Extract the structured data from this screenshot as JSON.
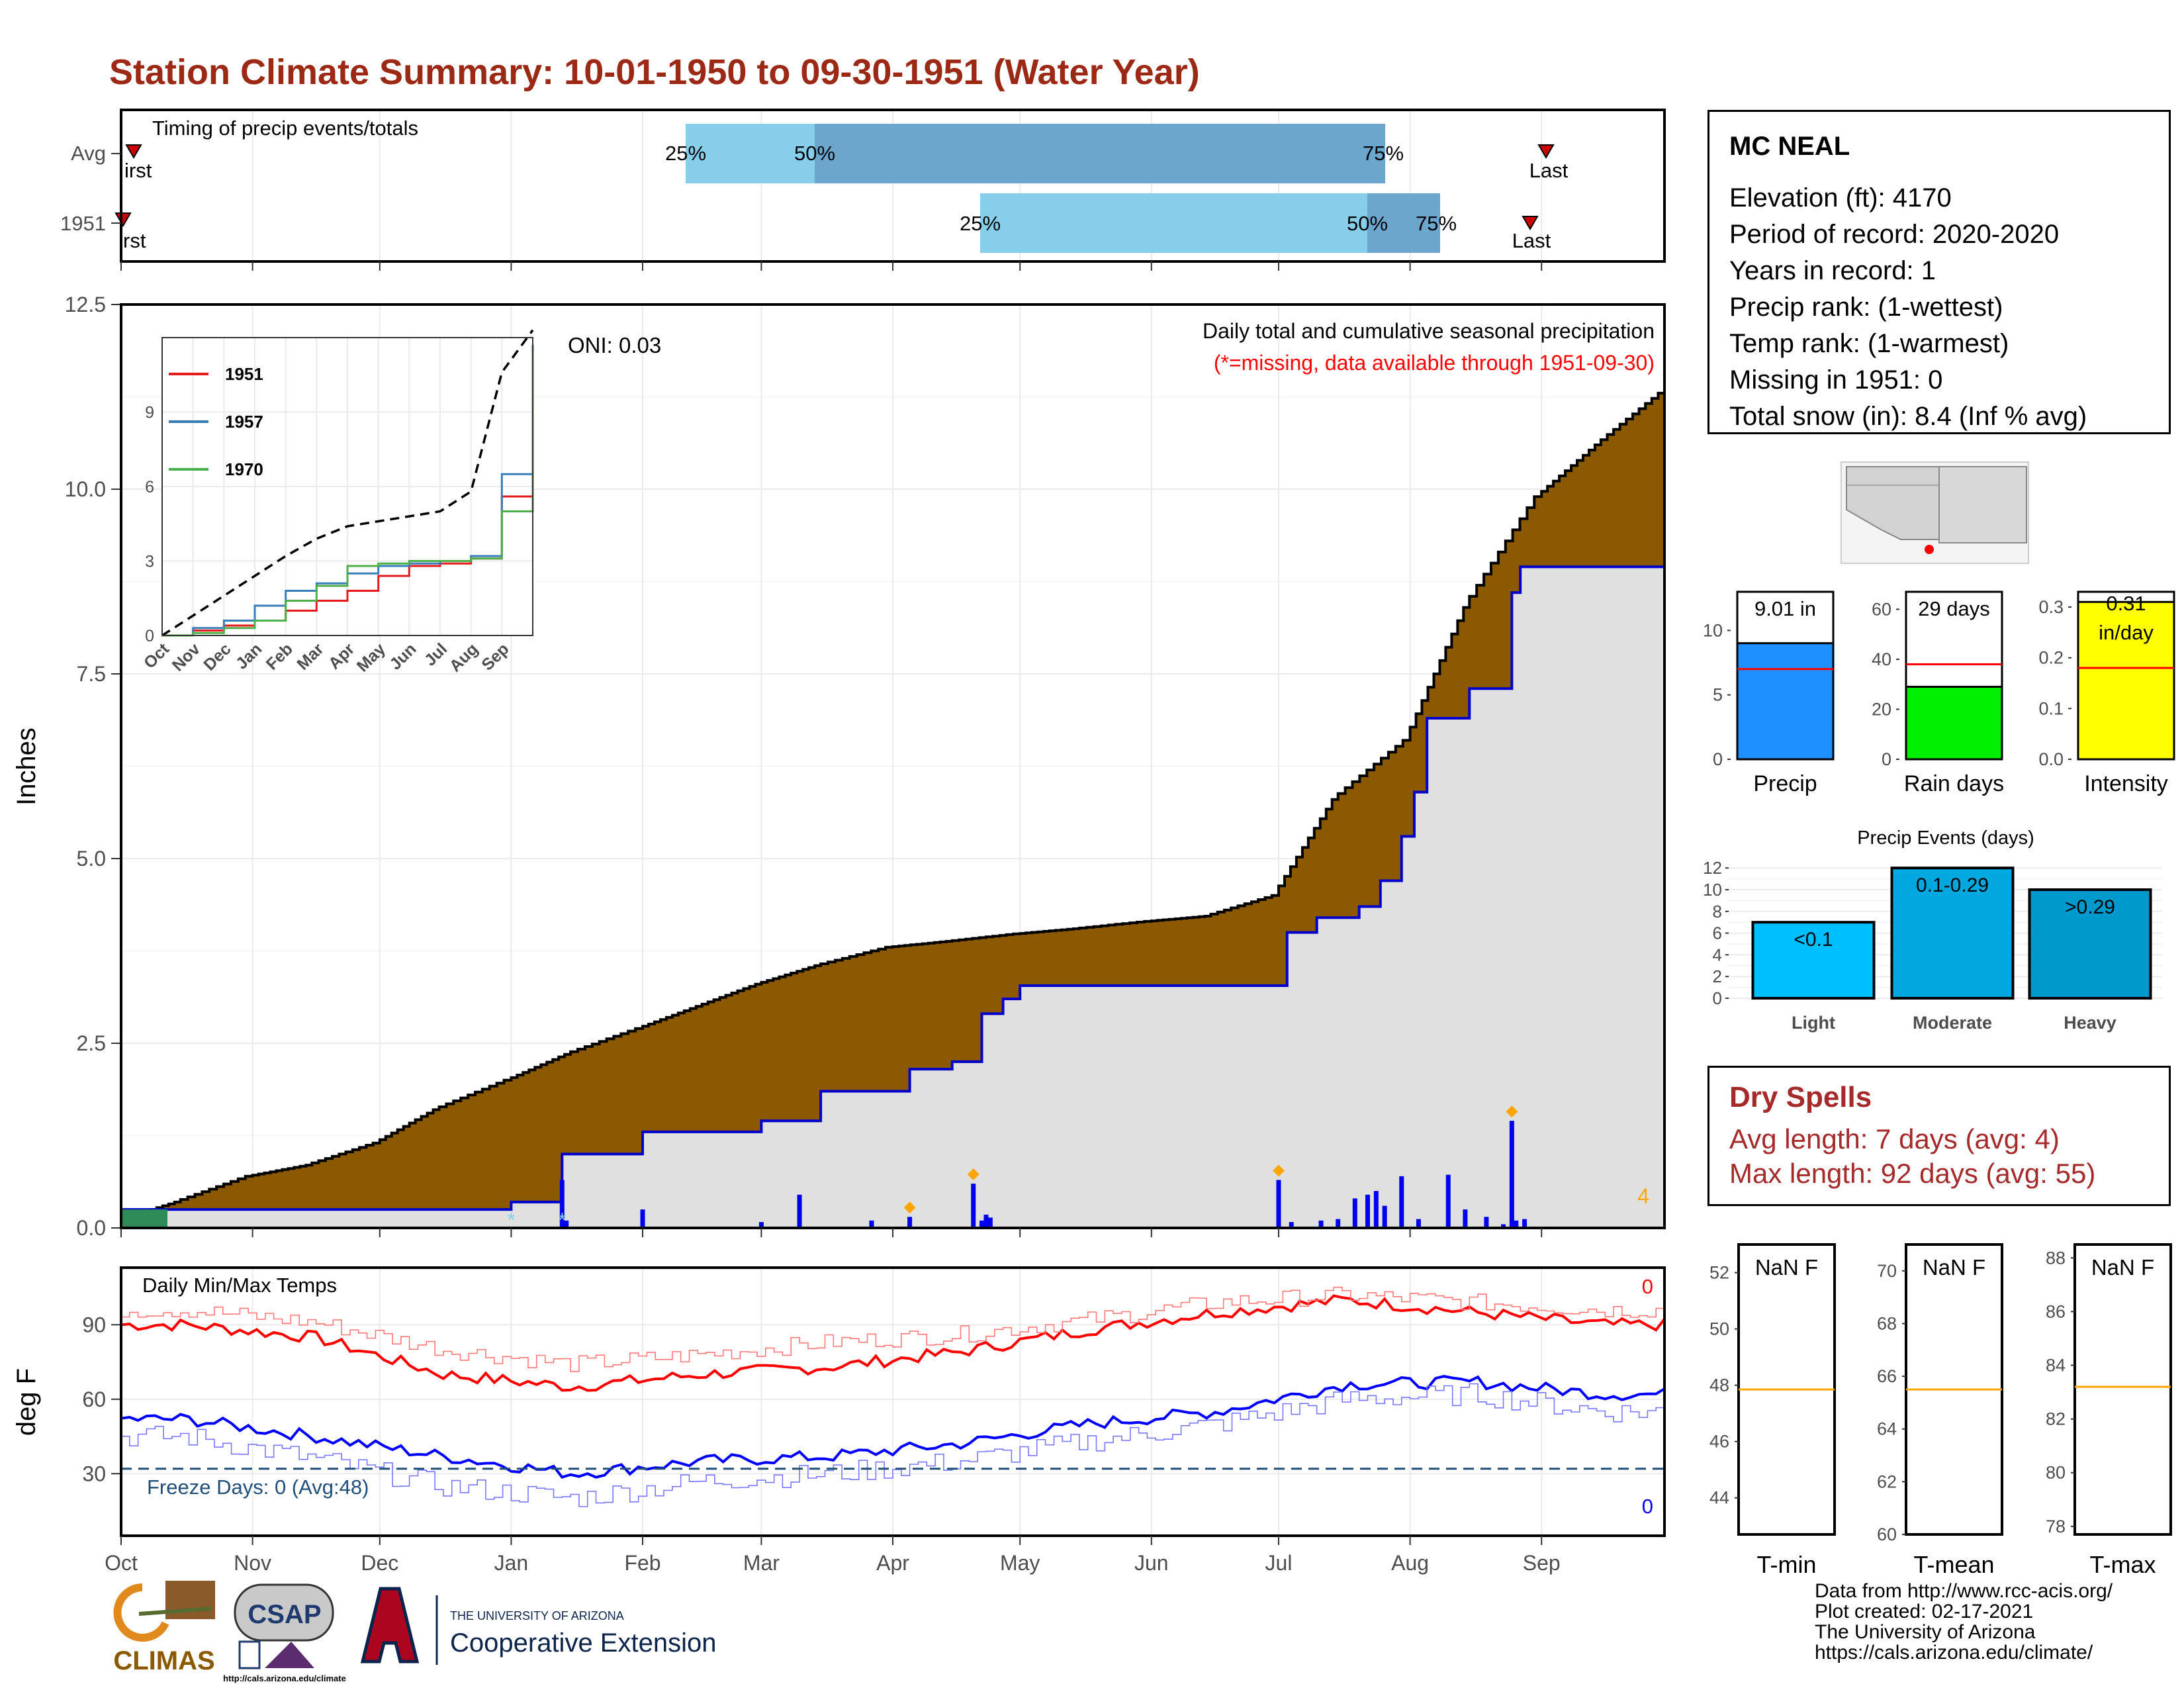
{
  "title": "Station Climate Summary: 10-01-1950 to 09-30-1951 (Water Year)",
  "timing": {
    "label": "Timing of precip events/totals",
    "rows": [
      "Avg",
      "1951"
    ],
    "avg_marks": {
      "first_label": "irst",
      "last_label": "Last",
      "p25": "25%",
      "p50": "50%",
      "p75": "75%"
    },
    "yr_marks": {
      "first_label": "rst",
      "last_label": "Last",
      "p25": "25%",
      "p50": "50%",
      "p75": "75%"
    },
    "colors": {
      "light": "#87CEEB",
      "dark": "#6CA6CD",
      "marker": "#CC0000"
    }
  },
  "main": {
    "ylabel": "Inches",
    "annotation": "Daily total and cumulative seasonal precipitation",
    "missing_note": "(*=missing, data available through 1951-09-30)",
    "oni": "ONI: 0.03",
    "corner_count": "4",
    "months": [
      "Oct",
      "Nov",
      "Dec",
      "Jan",
      "Feb",
      "Mar",
      "Apr",
      "May",
      "Jun",
      "Jul",
      "Aug",
      "Sep"
    ],
    "yticks": [
      "0.0",
      "2.5",
      "5.0",
      "7.5",
      "10.0",
      "12.5"
    ],
    "colors": {
      "avg_fill": "#8B5A00",
      "year_fill": "#E0E0E0",
      "year_line": "#0000CC",
      "bars": "#0000EE",
      "diamond": "#FFA500"
    }
  },
  "inset": {
    "legend": [
      "1951",
      "1957",
      "1970"
    ],
    "legend_colors": [
      "#E41A1C",
      "#377EB8",
      "#4DAF4A"
    ],
    "yticks": [
      "0",
      "3",
      "6",
      "9"
    ],
    "months": [
      "Oct",
      "Nov",
      "Dec",
      "Jan",
      "Feb",
      "Mar",
      "Apr",
      "May",
      "Jun",
      "Jul",
      "Aug",
      "Sep"
    ]
  },
  "temps": {
    "label": "Daily Min/Max Temps",
    "ylabel": "deg F",
    "yticks": [
      "30",
      "60",
      "90"
    ],
    "freeze": "Freeze Days: 0 (Avg:48)",
    "max_count": "0",
    "min_count": "0",
    "colors": {
      "max": "#FF0000",
      "min": "#0000FF",
      "freeze": "#1F4E79"
    }
  },
  "station": {
    "name": "MC NEAL",
    "lines": [
      "Elevation (ft): 4170",
      "Period of record: 2020-2020",
      "Years in record: 1",
      "Precip rank:  (1-wettest)",
      "Temp rank:  (1-warmest)",
      "Missing in 1951: 0",
      "Total snow (in): 8.4 (Inf % avg)"
    ]
  },
  "bars_precip": {
    "value_label": "9.01 in",
    "xlabel": "Precip",
    "yticks": [
      "0",
      "5",
      "10"
    ],
    "color": "#1E90FF"
  },
  "bars_raindays": {
    "value_label": "29 days",
    "xlabel": "Rain days",
    "yticks": [
      "0",
      "20",
      "40",
      "60"
    ],
    "color": "#00EE00"
  },
  "bars_intensity": {
    "value_label": "0.31 in/day",
    "value_line1": "0.31",
    "value_line2": "in/day",
    "xlabel": "Intensity",
    "yticks": [
      "0.0",
      "0.1",
      "0.2",
      "0.3"
    ],
    "color": "#FFFF00"
  },
  "events": {
    "title": "Precip Events (days)",
    "categories": [
      "Light",
      "Moderate",
      "Heavy"
    ],
    "labels": [
      "<0.1",
      "0.1-0.29",
      ">0.29"
    ],
    "values": [
      7,
      12,
      10
    ],
    "yticks": [
      "0",
      "2",
      "4",
      "6",
      "8",
      "10",
      "12"
    ],
    "colors": [
      "#00BFFF",
      "#00A8E0",
      "#0099CC"
    ]
  },
  "dry": {
    "title": "Dry Spells",
    "avg_line": "Avg length: 7 days (avg: 4)",
    "max_line": "Max length: 92 days (avg: 55)",
    "color": "#A52A2A"
  },
  "tmin": {
    "label": "NaN F",
    "xlabel": "T-min",
    "yticks": [
      "44",
      "46",
      "48",
      "50",
      "52"
    ]
  },
  "tmean": {
    "label": "NaN F",
    "xlabel": "T-mean",
    "yticks": [
      "60",
      "62",
      "64",
      "66",
      "68",
      "70"
    ]
  },
  "tmax": {
    "label": "NaN F",
    "xlabel": "T-max",
    "yticks": [
      "78",
      "80",
      "82",
      "84",
      "86",
      "88"
    ]
  },
  "logos": {
    "climas": "CLIMAS",
    "csap": "CSAP",
    "csap_url": "http://cals.arizona.edu/climate",
    "ua_line1": "THE UNIVERSITY OF ARIZONA",
    "ua_line2": "Cooperative Extension"
  },
  "footer": [
    "Data from http://www.rcc-acis.org/",
    "Plot created: 02-17-2021",
    "The University of Arizona",
    "https://cals.arizona.edu/climate/"
  ],
  "chart_data": [
    {
      "type": "area",
      "title": "Daily total and cumulative seasonal precipitation",
      "ylabel": "Inches",
      "ylim": [
        0,
        12.5
      ],
      "x_range": [
        "1950-10-01",
        "1951-09-30"
      ],
      "series": [
        {
          "name": "Avg",
          "dates": [
            "1950-10-01",
            "1950-10-15",
            "1950-11-01",
            "1950-11-15",
            "1950-12-01",
            "1950-12-15",
            "1951-01-01",
            "1951-01-15",
            "1951-02-01",
            "1951-02-15",
            "1951-03-01",
            "1951-03-15",
            "1951-04-01",
            "1951-04-15",
            "1951-05-01",
            "1951-05-15",
            "1951-06-01",
            "1951-06-15",
            "1951-07-01",
            "1951-07-15",
            "1951-08-01",
            "1951-08-15",
            "1951-09-01",
            "1951-09-15",
            "1951-09-30"
          ],
          "values": [
            0.1,
            0.35,
            0.7,
            0.85,
            1.15,
            1.6,
            2.0,
            2.35,
            2.7,
            3.0,
            3.3,
            3.55,
            3.8,
            3.88,
            3.98,
            4.05,
            4.15,
            4.22,
            4.5,
            5.8,
            6.6,
            8.4,
            9.9,
            10.6,
            11.3
          ]
        },
        {
          "name": "1951",
          "dates": [
            "1950-10-01",
            "1951-01-01",
            "1951-01-13",
            "1951-02-01",
            "1951-03-01",
            "1951-03-15",
            "1951-04-05",
            "1951-04-15",
            "1951-04-22",
            "1951-04-27",
            "1951-05-01",
            "1951-07-01",
            "1951-07-03",
            "1951-07-10",
            "1951-07-20",
            "1951-07-25",
            "1951-07-30",
            "1951-08-02",
            "1951-08-05",
            "1951-08-15",
            "1951-08-25",
            "1951-08-27",
            "1951-09-30"
          ],
          "values": [
            0.25,
            0.35,
            1.0,
            1.3,
            1.45,
            1.85,
            2.15,
            2.25,
            2.9,
            3.1,
            3.28,
            3.28,
            4.0,
            4.2,
            4.35,
            4.7,
            5.3,
            5.9,
            6.9,
            7.3,
            8.6,
            8.95,
            9.01
          ]
        }
      ],
      "daily_bars": {
        "dates": [
          "1951-01-13",
          "1951-01-14",
          "1951-02-01",
          "1951-03-01",
          "1951-03-10",
          "1951-03-27",
          "1951-04-05",
          "1951-04-20",
          "1951-04-22",
          "1951-04-23",
          "1951-04-24",
          "1951-07-01",
          "1951-07-04",
          "1951-07-11",
          "1951-07-15",
          "1951-07-19",
          "1951-07-22",
          "1951-07-24",
          "1951-07-26",
          "1951-07-30",
          "1951-08-03",
          "1951-08-10",
          "1951-08-14",
          "1951-08-19",
          "1951-08-23",
          "1951-08-25",
          "1951-08-26",
          "1951-08-28"
        ],
        "values": [
          0.65,
          0.1,
          0.25,
          0.08,
          0.45,
          0.1,
          0.15,
          0.6,
          0.1,
          0.18,
          0.14,
          0.65,
          0.08,
          0.1,
          0.12,
          0.4,
          0.45,
          0.5,
          0.3,
          0.7,
          0.12,
          0.72,
          0.25,
          0.15,
          0.05,
          1.45,
          0.1,
          0.12
        ]
      }
    },
    {
      "type": "line",
      "title": "",
      "ylim": [
        0,
        12
      ],
      "series": [
        {
          "name": "1951",
          "values": [
            0,
            0.2,
            0.4,
            0.6,
            1.0,
            1.4,
            1.8,
            2.4,
            2.8,
            2.9,
            3.1,
            5.6,
            11.2
          ]
        },
        {
          "name": "1957",
          "values": [
            0,
            0.3,
            0.6,
            1.2,
            1.8,
            2.1,
            2.5,
            2.8,
            2.9,
            3.0,
            3.2,
            6.5,
            11.7
          ]
        },
        {
          "name": "1970",
          "values": [
            0,
            0.1,
            0.3,
            0.6,
            1.4,
            2.0,
            2.8,
            2.9,
            3.0,
            3.0,
            3.1,
            5.0,
            11.4
          ]
        },
        {
          "name": "",
          "values": [
            0,
            0.8,
            1.6,
            2.4,
            3.2,
            3.9,
            4.4,
            4.6,
            4.8,
            5.0,
            5.8,
            10.6,
            12.3
          ]
        }
      ]
    },
    {
      "type": "line",
      "title": "Daily Min/Max Temps",
      "ylabel": "deg F",
      "ylim": [
        5,
        113
      ],
      "months": [
        "Oct",
        "Nov",
        "Dec",
        "Jan",
        "Feb",
        "Mar",
        "Apr",
        "May",
        "Jun",
        "Jul",
        "Aug",
        "Sep"
      ],
      "series": [
        {
          "name": "max",
          "values": [
            90,
            85,
            70,
            65,
            70,
            73,
            79,
            88,
            95,
            100,
            95,
            90
          ]
        },
        {
          "name": "min",
          "values": [
            52,
            45,
            37,
            30,
            35,
            37,
            42,
            50,
            55,
            66,
            67,
            62
          ]
        },
        {
          "name": "max avg",
          "values": [
            96,
            91,
            80,
            74,
            78,
            83,
            86,
            92,
            99,
            102,
            99,
            96
          ]
        },
        {
          "name": "min avg",
          "values": [
            45,
            36,
            25,
            20,
            27,
            30,
            35,
            43,
            50,
            60,
            62,
            55
          ]
        }
      ],
      "freeze_line": 32
    },
    {
      "type": "bar",
      "categories": [
        "Precip"
      ],
      "values": [
        9.01
      ],
      "ylim": [
        0,
        13
      ]
    },
    {
      "type": "bar",
      "categories": [
        "Rain days"
      ],
      "values": [
        29
      ],
      "ylim": [
        0,
        67
      ]
    },
    {
      "type": "bar",
      "categories": [
        "Intensity"
      ],
      "values": [
        0.31
      ],
      "ylim": [
        0,
        0.33
      ]
    },
    {
      "type": "bar",
      "title": "Precip Events (days)",
      "categories": [
        "Light",
        "Moderate",
        "Heavy"
      ],
      "values": [
        7,
        12,
        10
      ],
      "ylim": [
        0,
        12.5
      ]
    }
  ]
}
